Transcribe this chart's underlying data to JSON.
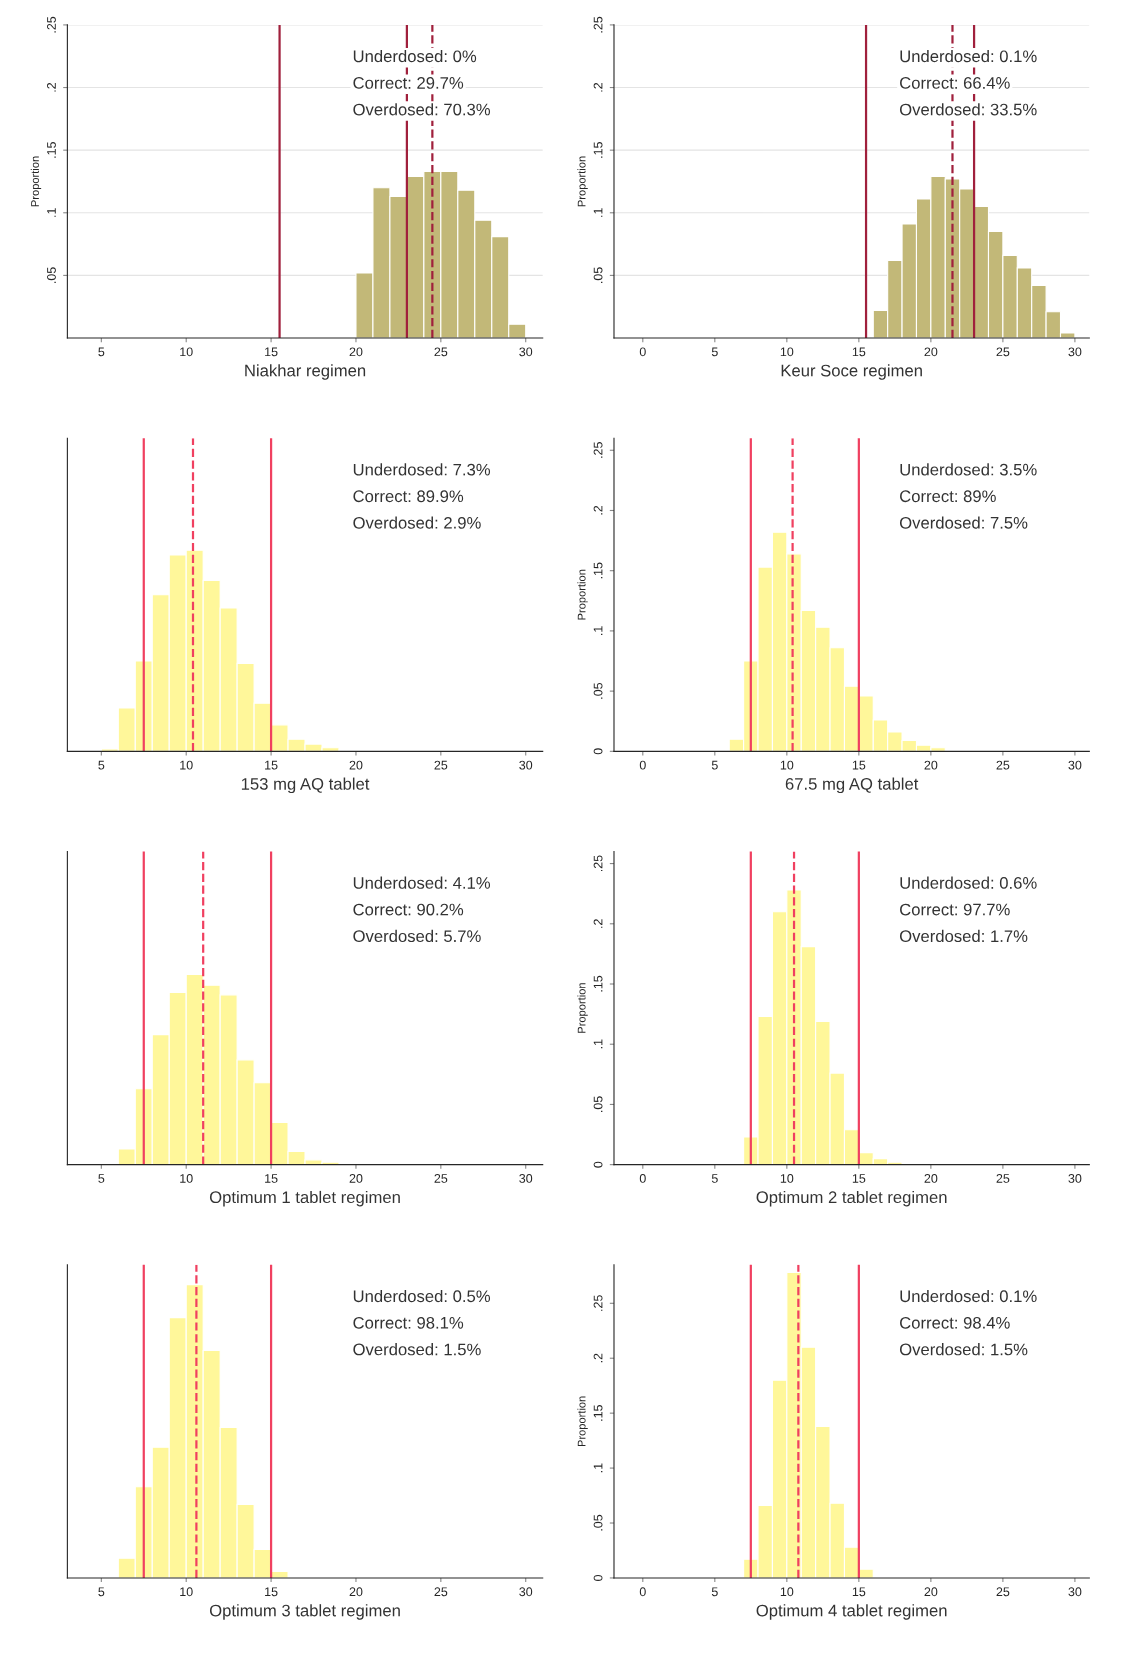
{
  "chart_data": [
    {
      "type": "histogram",
      "xlabel": "Niakhar regimen",
      "ylabel": "Proportion",
      "color": "#c2b878",
      "bins": [
        20,
        21,
        22,
        23,
        24,
        25,
        26,
        27,
        28,
        29,
        30
      ],
      "values": [
        0.052,
        0.12,
        0.113,
        0.129,
        0.133,
        0.133,
        0.118,
        0.094,
        0.081,
        0.011
      ],
      "xlim": [
        3,
        31
      ],
      "xticks": [
        5,
        10,
        15,
        20,
        25,
        30
      ],
      "ylim": [
        0,
        0.25
      ],
      "yticks": [
        {
          "value": 0.05,
          "label": ".05"
        },
        {
          "value": 0.1,
          "label": ".1"
        },
        {
          "value": 0.15,
          "label": ".15"
        },
        {
          "value": 0.2,
          "label": ".2"
        },
        {
          "value": 0.25,
          "label": ".25"
        }
      ],
      "grid": "y",
      "ref_lines": [
        {
          "axis": "x",
          "value": 15.5,
          "color": "#a0203c",
          "line_style": "solid"
        },
        {
          "axis": "x",
          "value": 23,
          "color": "#a0203c",
          "line_style": "solid"
        },
        {
          "axis": "x",
          "value": 24.5,
          "color": "#a0203c",
          "line_style": "dashed"
        }
      ],
      "annotations": [
        "Underdosed: 0%",
        "Correct: 29.7%",
        "Overdosed: 70.3%"
      ]
    },
    {
      "type": "histogram",
      "xlabel": "Keur Soce regimen",
      "ylabel": "Proportion",
      "color": "#c2b878",
      "bins": [
        16,
        17,
        18,
        19,
        20,
        21,
        22,
        23,
        24,
        25,
        26,
        27,
        28,
        29,
        30
      ],
      "values": [
        0.022,
        0.062,
        0.091,
        0.111,
        0.129,
        0.127,
        0.119,
        0.105,
        0.085,
        0.066,
        0.056,
        0.042,
        0.021,
        0.004
      ],
      "xlim": [
        -2,
        31
      ],
      "xticks": [
        0,
        5,
        10,
        15,
        20,
        25,
        30
      ],
      "ylim": [
        0,
        0.25
      ],
      "yticks": [
        {
          "value": 0.05,
          "label": ".05"
        },
        {
          "value": 0.1,
          "label": ".1"
        },
        {
          "value": 0.15,
          "label": ".15"
        },
        {
          "value": 0.2,
          "label": ".2"
        },
        {
          "value": 0.25,
          "label": ".25"
        }
      ],
      "grid": "y",
      "ref_lines": [
        {
          "axis": "x",
          "value": 15.5,
          "color": "#a0203c",
          "line_style": "solid"
        },
        {
          "axis": "x",
          "value": 21.5,
          "color": "#a0203c",
          "line_style": "dashed"
        },
        {
          "axis": "x",
          "value": 23,
          "color": "#a0203c",
          "line_style": "solid"
        }
      ],
      "annotations": [
        "Underdosed: 0.1%",
        "Correct: 66.4%",
        "Overdosed: 33.5%"
      ]
    },
    {
      "type": "histogram",
      "xlabel": "153 mg AQ tablet",
      "color": "#fff79a",
      "bins": [
        5,
        6,
        7,
        8,
        9,
        10,
        11,
        12,
        13,
        14,
        15,
        16,
        17,
        18,
        19,
        20
      ],
      "values": [
        0.002,
        0.036,
        0.075,
        0.13,
        0.163,
        0.167,
        0.142,
        0.119,
        0.073,
        0.04,
        0.022,
        0.01,
        0.006,
        0.003,
        0.001
      ],
      "xlim": [
        3,
        31
      ],
      "xticks": [
        5,
        10,
        15,
        20,
        25,
        30
      ],
      "ylim": [
        0,
        0.26
      ],
      "tick_labels": "x",
      "ref_lines": [
        {
          "axis": "x",
          "value": 7.5,
          "color": "#f04060",
          "line_style": "solid"
        },
        {
          "axis": "x",
          "value": 10.4,
          "color": "#f04060",
          "line_style": "dashed"
        },
        {
          "axis": "x",
          "value": 15,
          "color": "#f04060",
          "line_style": "solid"
        }
      ],
      "annotations": [
        "Underdosed: 7.3%",
        "Correct: 89.9%",
        "Overdosed: 2.9%"
      ]
    },
    {
      "type": "histogram",
      "xlabel": "67.5 mg AQ tablet",
      "ylabel": "Proportion",
      "color": "#fff79a",
      "bins": [
        6,
        7,
        8,
        9,
        10,
        11,
        12,
        13,
        14,
        15,
        16,
        17,
        18,
        19,
        20,
        21
      ],
      "values": [
        0.01,
        0.075,
        0.153,
        0.182,
        0.164,
        0.117,
        0.103,
        0.086,
        0.054,
        0.046,
        0.026,
        0.016,
        0.009,
        0.005,
        0.003
      ],
      "xlim": [
        -2,
        31
      ],
      "xticks": [
        0,
        5,
        10,
        15,
        20,
        25,
        30
      ],
      "ylim": [
        0,
        0.26
      ],
      "yticks": [
        0,
        {
          "value": 0.05,
          "label": ".05"
        },
        {
          "value": 0.1,
          "label": ".1"
        },
        {
          "value": 0.15,
          "label": ".15"
        },
        {
          "value": 0.2,
          "label": ".2"
        },
        {
          "value": 0.25,
          "label": ".25"
        }
      ],
      "ref_lines": [
        {
          "axis": "x",
          "value": 7.5,
          "color": "#f04060",
          "line_style": "solid"
        },
        {
          "axis": "x",
          "value": 10.4,
          "color": "#f04060",
          "line_style": "dashed"
        },
        {
          "axis": "x",
          "value": 15,
          "color": "#f04060",
          "line_style": "solid"
        }
      ],
      "annotations": [
        "Underdosed: 3.5%",
        "Correct: 89%",
        "Overdosed: 7.5%"
      ]
    },
    {
      "type": "histogram",
      "xlabel": "Optimum 1 tablet regimen",
      "color": "#fff79a",
      "bins": [
        6,
        7,
        8,
        9,
        10,
        11,
        12,
        13,
        14,
        15,
        16,
        17,
        18,
        19
      ],
      "values": [
        0.013,
        0.063,
        0.108,
        0.143,
        0.158,
        0.149,
        0.141,
        0.087,
        0.068,
        0.035,
        0.011,
        0.004,
        0.002
      ],
      "xlim": [
        3,
        31
      ],
      "xticks": [
        5,
        10,
        15,
        20,
        25,
        30
      ],
      "ylim": [
        0,
        0.26
      ],
      "tick_labels": "x",
      "ref_lines": [
        {
          "axis": "x",
          "value": 7.5,
          "color": "#f04060",
          "line_style": "solid"
        },
        {
          "axis": "x",
          "value": 11,
          "color": "#f04060",
          "line_style": "dashed"
        },
        {
          "axis": "x",
          "value": 15,
          "color": "#f04060",
          "line_style": "solid"
        }
      ],
      "annotations": [
        "Underdosed: 4.1%",
        "Correct: 90.2%",
        "Overdosed: 5.7%"
      ]
    },
    {
      "type": "histogram",
      "xlabel": "Optimum 2 tablet regimen",
      "ylabel": "Proportion",
      "color": "#fff79a",
      "bins": [
        7,
        8,
        9,
        10,
        11,
        12,
        13,
        14,
        15,
        16,
        17,
        18
      ],
      "values": [
        0.023,
        0.123,
        0.21,
        0.228,
        0.181,
        0.119,
        0.076,
        0.029,
        0.01,
        0.005,
        0.002
      ],
      "xlim": [
        -2,
        31
      ],
      "xticks": [
        0,
        5,
        10,
        15,
        20,
        25,
        30
      ],
      "ylim": [
        0,
        0.26
      ],
      "yticks": [
        0,
        {
          "value": 0.05,
          "label": ".05"
        },
        {
          "value": 0.1,
          "label": ".1"
        },
        {
          "value": 0.15,
          "label": ".15"
        },
        {
          "value": 0.2,
          "label": ".2"
        },
        {
          "value": 0.25,
          "label": ".25"
        }
      ],
      "ref_lines": [
        {
          "axis": "x",
          "value": 7.5,
          "color": "#f04060",
          "line_style": "solid"
        },
        {
          "axis": "x",
          "value": 10.5,
          "color": "#f04060",
          "line_style": "dashed"
        },
        {
          "axis": "x",
          "value": 15,
          "color": "#f04060",
          "line_style": "solid"
        }
      ],
      "annotations": [
        "Underdosed: 0.6%",
        "Correct: 97.7%",
        "Overdosed: 1.7%"
      ]
    },
    {
      "type": "histogram",
      "xlabel": "Optimum 3 tablet regimen",
      "color": "#fff79a",
      "bins": [
        6,
        7,
        8,
        9,
        10,
        11,
        12,
        13,
        14,
        15,
        16
      ],
      "values": [
        0.018,
        0.083,
        0.119,
        0.237,
        0.267,
        0.207,
        0.137,
        0.067,
        0.026,
        0.006
      ],
      "xlim": [
        3,
        31
      ],
      "xticks": [
        5,
        10,
        15,
        20,
        25,
        30
      ],
      "ylim": [
        0,
        0.285
      ],
      "tick_labels": "x",
      "ref_lines": [
        {
          "axis": "x",
          "value": 7.5,
          "color": "#f04060",
          "line_style": "solid"
        },
        {
          "axis": "x",
          "value": 10.6,
          "color": "#f04060",
          "line_style": "dashed"
        },
        {
          "axis": "x",
          "value": 15,
          "color": "#f04060",
          "line_style": "solid"
        }
      ],
      "annotations": [
        "Underdosed: 0.5%",
        "Correct: 98.1%",
        "Overdosed: 1.5%"
      ]
    },
    {
      "type": "histogram",
      "xlabel": "Optimum 4 tablet regimen",
      "ylabel": "Proportion",
      "color": "#fff79a",
      "bins": [
        7,
        8,
        9,
        10,
        11,
        12,
        13,
        14,
        15,
        16
      ],
      "values": [
        0.017,
        0.066,
        0.18,
        0.278,
        0.21,
        0.138,
        0.068,
        0.028,
        0.008
      ],
      "xlim": [
        -2,
        31
      ],
      "xticks": [
        0,
        5,
        10,
        15,
        20,
        25,
        30
      ],
      "ylim": [
        0,
        0.285
      ],
      "yticks": [
        0,
        {
          "value": 0.05,
          "label": ".05"
        },
        {
          "value": 0.1,
          "label": ".1"
        },
        {
          "value": 0.15,
          "label": ".15"
        },
        {
          "value": 0.2,
          "label": ".2"
        },
        {
          "value": 0.25,
          "label": ".25"
        }
      ],
      "ref_lines": [
        {
          "axis": "x",
          "value": 7.5,
          "color": "#f04060",
          "line_style": "solid"
        },
        {
          "axis": "x",
          "value": 10.8,
          "color": "#f04060",
          "line_style": "dashed"
        },
        {
          "axis": "x",
          "value": 15,
          "color": "#f04060",
          "line_style": "solid"
        }
      ],
      "annotations": [
        "Underdosed: 0.1%",
        "Correct: 98.4%",
        "Overdosed: 1.5%"
      ]
    }
  ]
}
